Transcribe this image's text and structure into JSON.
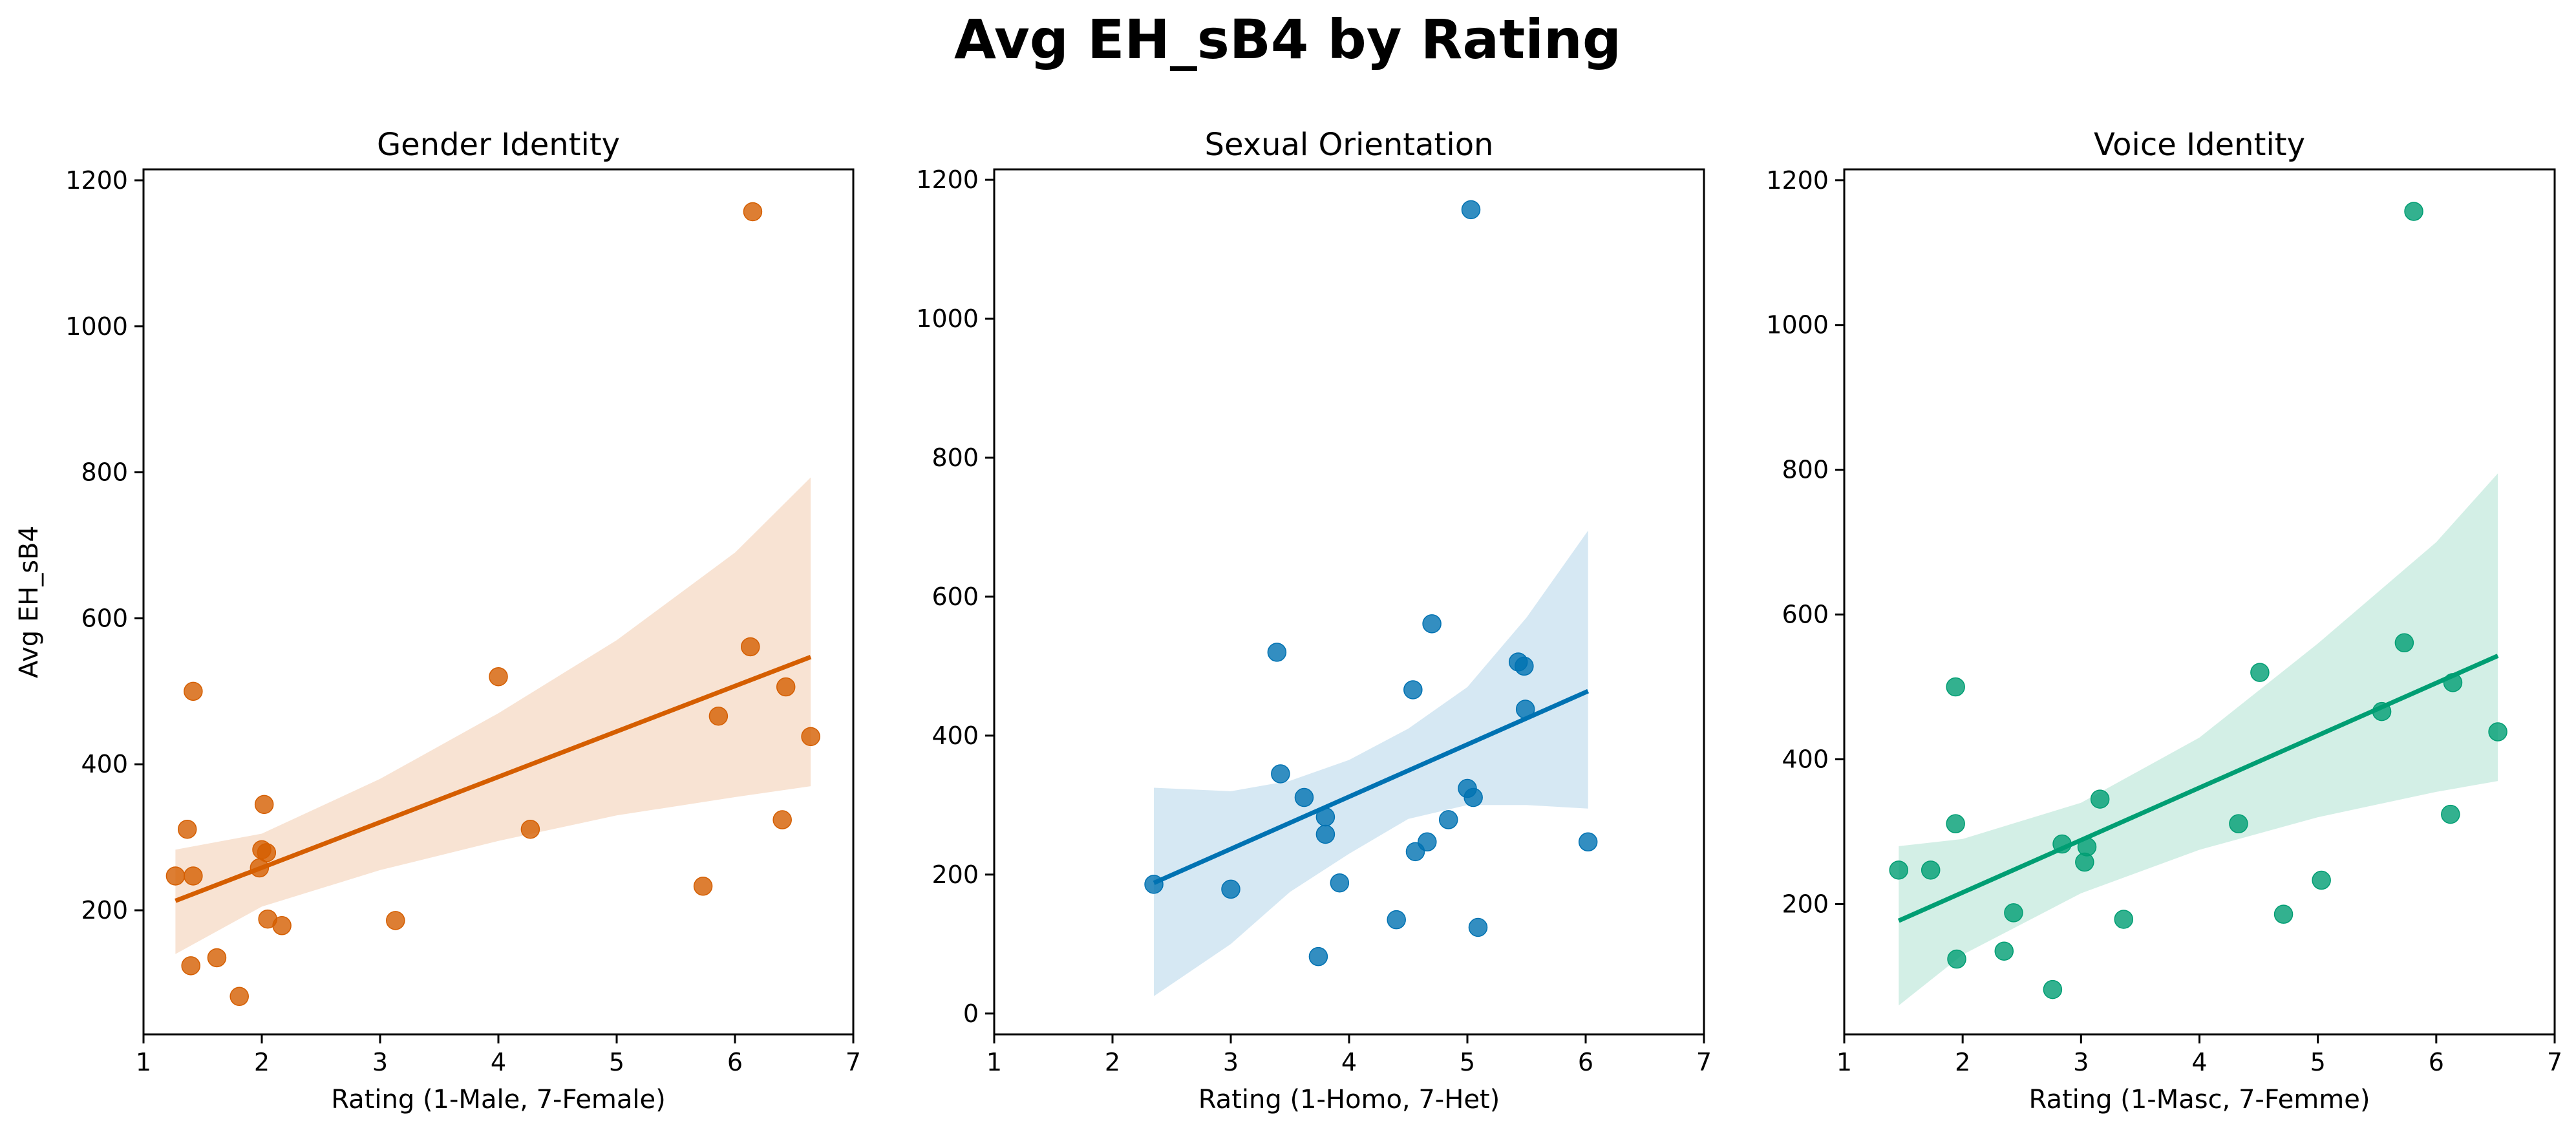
{
  "figure": {
    "title": "Avg EH_sB4 by Rating"
  },
  "chart_data": [
    {
      "type": "scatter",
      "title": "Gender Identity",
      "xlabel": "Rating (1-Male, 7-Female)",
      "ylabel": "Avg EH_sB4",
      "xlim": [
        1,
        7
      ],
      "ylim": [
        30,
        1215
      ],
      "xticks": [
        1,
        2,
        3,
        4,
        5,
        6,
        7
      ],
      "yticks": [
        200,
        400,
        600,
        800,
        1000,
        1200
      ],
      "color": "#d55e00",
      "band_color": "#f8e3d3",
      "grid": false,
      "points": [
        {
          "x": 1.27,
          "y": 247
        },
        {
          "x": 1.37,
          "y": 311
        },
        {
          "x": 1.4,
          "y": 124
        },
        {
          "x": 1.42,
          "y": 500
        },
        {
          "x": 1.42,
          "y": 247
        },
        {
          "x": 1.62,
          "y": 135
        },
        {
          "x": 1.81,
          "y": 82
        },
        {
          "x": 1.98,
          "y": 258
        },
        {
          "x": 2.0,
          "y": 283
        },
        {
          "x": 2.02,
          "y": 345
        },
        {
          "x": 2.04,
          "y": 279
        },
        {
          "x": 2.05,
          "y": 188
        },
        {
          "x": 2.17,
          "y": 179
        },
        {
          "x": 3.13,
          "y": 186
        },
        {
          "x": 4.0,
          "y": 520
        },
        {
          "x": 4.27,
          "y": 311
        },
        {
          "x": 5.73,
          "y": 233
        },
        {
          "x": 5.86,
          "y": 466
        },
        {
          "x": 6.13,
          "y": 561
        },
        {
          "x": 6.15,
          "y": 1157
        },
        {
          "x": 6.4,
          "y": 324
        },
        {
          "x": 6.43,
          "y": 506
        },
        {
          "x": 6.64,
          "y": 438
        }
      ],
      "fit_line": {
        "x": [
          1.27,
          6.64
        ],
        "y": [
          213,
          547
        ]
      },
      "ci_band": {
        "x": [
          1.27,
          2.0,
          3.0,
          4.0,
          5.0,
          6.0,
          6.64
        ],
        "upper": [
          283,
          305,
          380,
          470,
          570,
          690,
          793
        ],
        "lower": [
          140,
          205,
          255,
          295,
          330,
          355,
          370
        ]
      }
    },
    {
      "type": "scatter",
      "title": "Sexual Orientation",
      "xlabel": "Rating (1-Homo, 7-Het)",
      "ylabel": "",
      "xlim": [
        1,
        7
      ],
      "ylim": [
        -30,
        1215
      ],
      "xticks": [
        1,
        2,
        3,
        4,
        5,
        6,
        7
      ],
      "yticks": [
        0,
        200,
        400,
        600,
        800,
        1000,
        1200
      ],
      "color": "#0072b2",
      "band_color": "#d6e8f3",
      "grid": false,
      "points": [
        {
          "x": 2.35,
          "y": 186
        },
        {
          "x": 3.0,
          "y": 179
        },
        {
          "x": 3.39,
          "y": 520
        },
        {
          "x": 3.42,
          "y": 345
        },
        {
          "x": 3.62,
          "y": 311
        },
        {
          "x": 3.74,
          "y": 82
        },
        {
          "x": 3.8,
          "y": 283
        },
        {
          "x": 3.8,
          "y": 258
        },
        {
          "x": 3.92,
          "y": 188
        },
        {
          "x": 4.4,
          "y": 135
        },
        {
          "x": 4.54,
          "y": 466
        },
        {
          "x": 4.56,
          "y": 233
        },
        {
          "x": 4.66,
          "y": 247
        },
        {
          "x": 4.7,
          "y": 561
        },
        {
          "x": 4.84,
          "y": 279
        },
        {
          "x": 5.0,
          "y": 324
        },
        {
          "x": 5.03,
          "y": 1157
        },
        {
          "x": 5.05,
          "y": 311
        },
        {
          "x": 5.09,
          "y": 124
        },
        {
          "x": 5.43,
          "y": 506
        },
        {
          "x": 5.48,
          "y": 500
        },
        {
          "x": 5.49,
          "y": 438
        },
        {
          "x": 6.02,
          "y": 247
        }
      ],
      "fit_line": {
        "x": [
          2.35,
          6.02
        ],
        "y": [
          188,
          464
        ]
      },
      "ci_band": {
        "x": [
          2.35,
          3.0,
          3.5,
          4.0,
          4.5,
          5.0,
          5.5,
          6.02
        ],
        "upper": [
          325,
          320,
          335,
          365,
          410,
          470,
          570,
          695
        ],
        "lower": [
          25,
          100,
          175,
          230,
          280,
          300,
          300,
          295
        ]
      }
    },
    {
      "type": "scatter",
      "title": "Voice Identity",
      "xlabel": "Rating (1-Masc, 7-Femme)",
      "ylabel": "",
      "xlim": [
        1,
        7
      ],
      "ylim": [
        20,
        1215
      ],
      "xticks": [
        1,
        2,
        3,
        4,
        5,
        6,
        7
      ],
      "yticks": [
        200,
        400,
        600,
        800,
        1000,
        1200
      ],
      "color": "#009e73",
      "band_color": "#d3efe6",
      "grid": false,
      "points": [
        {
          "x": 1.46,
          "y": 247
        },
        {
          "x": 1.73,
          "y": 247
        },
        {
          "x": 1.94,
          "y": 500
        },
        {
          "x": 1.94,
          "y": 311
        },
        {
          "x": 1.95,
          "y": 124
        },
        {
          "x": 2.35,
          "y": 135
        },
        {
          "x": 2.43,
          "y": 188
        },
        {
          "x": 2.76,
          "y": 82
        },
        {
          "x": 2.84,
          "y": 283
        },
        {
          "x": 3.03,
          "y": 258
        },
        {
          "x": 3.05,
          "y": 279
        },
        {
          "x": 3.16,
          "y": 345
        },
        {
          "x": 3.36,
          "y": 179
        },
        {
          "x": 4.33,
          "y": 311
        },
        {
          "x": 4.51,
          "y": 520
        },
        {
          "x": 4.71,
          "y": 186
        },
        {
          "x": 5.03,
          "y": 233
        },
        {
          "x": 5.54,
          "y": 466
        },
        {
          "x": 5.73,
          "y": 561
        },
        {
          "x": 5.81,
          "y": 1157
        },
        {
          "x": 6.12,
          "y": 324
        },
        {
          "x": 6.14,
          "y": 506
        },
        {
          "x": 6.52,
          "y": 438
        }
      ],
      "fit_line": {
        "x": [
          1.46,
          6.52
        ],
        "y": [
          177,
          543
        ]
      },
      "ci_band": {
        "x": [
          1.46,
          2.0,
          3.0,
          4.0,
          5.0,
          6.0,
          6.52
        ],
        "upper": [
          280,
          290,
          340,
          430,
          560,
          700,
          795
        ],
        "lower": [
          60,
          130,
          215,
          275,
          320,
          355,
          370
        ]
      }
    }
  ]
}
